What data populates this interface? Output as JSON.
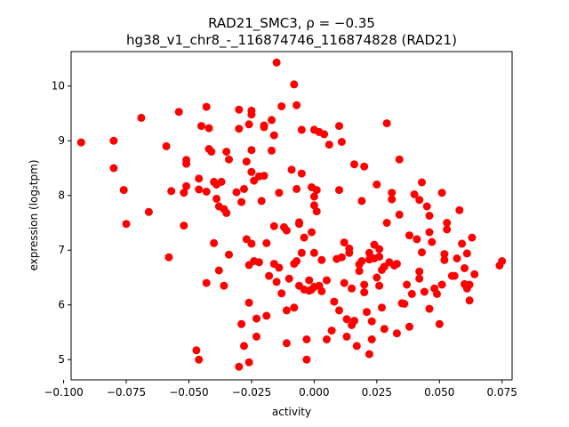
{
  "chart_data": {
    "type": "scatter",
    "title_line1": "RAD21_SMC3, ρ = −0.35",
    "title_line2": "hg38_v1_chr8_-_116874746_116874828 (RAD21)",
    "xlabel": "activity",
    "ylabel": "expression (log₂tpm)",
    "xlim": [
      -0.097,
      0.079
    ],
    "ylim": [
      4.63,
      10.63
    ],
    "xticks": [
      -0.1,
      -0.075,
      -0.05,
      -0.025,
      0.0,
      0.025,
      0.05,
      0.075
    ],
    "xtick_labels": [
      "−0.100",
      "−0.075",
      "−0.050",
      "−0.025",
      "0.000",
      "0.025",
      "0.050",
      "0.075"
    ],
    "yticks": [
      5,
      6,
      7,
      8,
      9,
      10
    ],
    "ytick_labels": [
      "5",
      "6",
      "7",
      "8",
      "9",
      "10"
    ],
    "grid": false,
    "marker_color": "#ff0000",
    "points": [
      [
        -0.093,
        8.97
      ],
      [
        -0.08,
        9.0
      ],
      [
        -0.08,
        8.5
      ],
      [
        -0.076,
        8.1
      ],
      [
        -0.075,
        7.48
      ],
      [
        -0.069,
        9.42
      ],
      [
        -0.066,
        7.7
      ],
      [
        -0.059,
        8.9
      ],
      [
        -0.058,
        6.87
      ],
      [
        -0.057,
        8.08
      ],
      [
        -0.054,
        9.53
      ],
      [
        -0.052,
        7.45
      ],
      [
        -0.052,
        8.05
      ],
      [
        -0.051,
        8.58
      ],
      [
        -0.051,
        8.65
      ],
      [
        -0.051,
        8.17
      ],
      [
        -0.047,
        5.17
      ],
      [
        -0.046,
        8.11
      ],
      [
        -0.046,
        5.0
      ],
      [
        -0.046,
        8.31
      ],
      [
        -0.045,
        9.27
      ],
      [
        -0.043,
        9.62
      ],
      [
        -0.043,
        8.07
      ],
      [
        -0.043,
        6.4
      ],
      [
        -0.042,
        9.23
      ],
      [
        -0.042,
        8.85
      ],
      [
        -0.041,
        8.8
      ],
      [
        -0.04,
        7.13
      ],
      [
        -0.04,
        8.25
      ],
      [
        -0.039,
        8.2
      ],
      [
        -0.039,
        7.94
      ],
      [
        -0.038,
        7.8
      ],
      [
        -0.038,
        6.63
      ],
      [
        -0.037,
        8.25
      ],
      [
        -0.036,
        6.35
      ],
      [
        -0.036,
        7.75
      ],
      [
        -0.035,
        8.8
      ],
      [
        -0.035,
        7.68
      ],
      [
        -0.034,
        8.66
      ],
      [
        -0.034,
        6.92
      ],
      [
        -0.031,
        8.06
      ],
      [
        -0.03,
        4.87
      ],
      [
        -0.03,
        9.57
      ],
      [
        -0.03,
        9.22
      ],
      [
        -0.029,
        7.88
      ],
      [
        -0.029,
        5.65
      ],
      [
        -0.028,
        8.12
      ],
      [
        -0.028,
        5.25
      ],
      [
        -0.027,
        7.2
      ],
      [
        -0.027,
        8.62
      ],
      [
        -0.026,
        9.3
      ],
      [
        -0.026,
        4.95
      ],
      [
        -0.026,
        6.73
      ],
      [
        -0.026,
        6.04
      ],
      [
        -0.025,
        8.83
      ],
      [
        -0.025,
        7.12
      ],
      [
        -0.025,
        8.43
      ],
      [
        -0.025,
        9.55
      ],
      [
        -0.025,
        9.48
      ],
      [
        -0.024,
        8.27
      ],
      [
        -0.024,
        6.8
      ],
      [
        -0.023,
        5.42
      ],
      [
        -0.023,
        5.75
      ],
      [
        -0.022,
        8.35
      ],
      [
        -0.022,
        6.78
      ],
      [
        -0.021,
        7.9
      ],
      [
        -0.02,
        9.25
      ],
      [
        -0.02,
        9.28
      ],
      [
        -0.02,
        8.36
      ],
      [
        -0.019,
        5.8
      ],
      [
        -0.019,
        7.13
      ],
      [
        -0.018,
        6.53
      ],
      [
        -0.017,
        8.82
      ],
      [
        -0.017,
        9.38
      ],
      [
        -0.016,
        6.75
      ],
      [
        -0.016,
        9.1
      ],
      [
        -0.016,
        7.44
      ],
      [
        -0.015,
        10.43
      ],
      [
        -0.015,
        6.42
      ],
      [
        -0.014,
        8.05
      ],
      [
        -0.014,
        6.68
      ],
      [
        -0.013,
        9.63
      ],
      [
        -0.013,
        6.21
      ],
      [
        -0.012,
        7.42
      ],
      [
        -0.011,
        5.3
      ],
      [
        -0.011,
        7.36
      ],
      [
        -0.011,
        5.9
      ],
      [
        -0.01,
        6.48
      ],
      [
        -0.009,
        8.47
      ],
      [
        -0.008,
        10.03
      ],
      [
        -0.008,
        5.95
      ],
      [
        -0.008,
        6.75
      ],
      [
        -0.007,
        8.12
      ],
      [
        -0.007,
        9.65
      ],
      [
        -0.007,
        6.8
      ],
      [
        -0.006,
        7.48
      ],
      [
        -0.006,
        7.51
      ],
      [
        -0.006,
        6.35
      ],
      [
        -0.005,
        8.4
      ],
      [
        -0.005,
        6.95
      ],
      [
        -0.005,
        9.2
      ],
      [
        -0.004,
        6.28
      ],
      [
        -0.004,
        7.23
      ],
      [
        -0.003,
        5.0
      ],
      [
        -0.003,
        5.37
      ],
      [
        -0.002,
        6.26
      ],
      [
        -0.002,
        6.45
      ],
      [
        -0.001,
        8.15
      ],
      [
        -0.001,
        6.28
      ],
      [
        -0.001,
        7.33
      ],
      [
        0.0,
        7.82
      ],
      [
        0.0,
        9.2
      ],
      [
        0.0,
        6.33
      ],
      [
        0.0,
        7.98
      ],
      [
        0.0,
        6.95
      ],
      [
        0.001,
        8.1
      ],
      [
        0.001,
        7.71
      ],
      [
        0.002,
        6.35
      ],
      [
        0.002,
        9.16
      ],
      [
        0.003,
        6.25
      ],
      [
        0.003,
        6.82
      ],
      [
        0.004,
        9.12
      ],
      [
        0.005,
        5.37
      ],
      [
        0.005,
        6.45
      ],
      [
        0.006,
        8.93
      ],
      [
        0.007,
        5.53
      ],
      [
        0.008,
        6.06
      ],
      [
        0.009,
        6.84
      ],
      [
        0.01,
        9.27
      ],
      [
        0.01,
        8.1
      ],
      [
        0.01,
        5.9
      ],
      [
        0.011,
        8.98
      ],
      [
        0.011,
        6.87
      ],
      [
        0.012,
        6.4
      ],
      [
        0.012,
        7.14
      ],
      [
        0.013,
        5.74
      ],
      [
        0.013,
        5.42
      ],
      [
        0.014,
        7.03
      ],
      [
        0.014,
        6.95
      ],
      [
        0.015,
        6.3
      ],
      [
        0.015,
        5.63
      ],
      [
        0.016,
        8.57
      ],
      [
        0.016,
        5.71
      ],
      [
        0.017,
        5.25
      ],
      [
        0.018,
        6.74
      ],
      [
        0.018,
        6.62
      ],
      [
        0.019,
        7.9
      ],
      [
        0.019,
        6.8
      ],
      [
        0.02,
        8.53
      ],
      [
        0.02,
        6.37
      ],
      [
        0.02,
        6.23
      ],
      [
        0.021,
        5.87
      ],
      [
        0.022,
        5.1
      ],
      [
        0.022,
        6.83
      ],
      [
        0.022,
        6.95
      ],
      [
        0.023,
        5.7
      ],
      [
        0.023,
        5.37
      ],
      [
        0.024,
        6.85
      ],
      [
        0.024,
        7.1
      ],
      [
        0.025,
        8.2
      ],
      [
        0.025,
        6.5
      ],
      [
        0.026,
        6.35
      ],
      [
        0.026,
        7.02
      ],
      [
        0.026,
        6.88
      ],
      [
        0.027,
        5.95
      ],
      [
        0.027,
        6.64
      ],
      [
        0.028,
        5.56
      ],
      [
        0.028,
        6.7
      ],
      [
        0.029,
        7.5
      ],
      [
        0.029,
        9.32
      ],
      [
        0.03,
        6.78
      ],
      [
        0.031,
        8.05
      ],
      [
        0.031,
        7.93
      ],
      [
        0.032,
        6.72
      ],
      [
        0.033,
        5.48
      ],
      [
        0.033,
        6.75
      ],
      [
        0.034,
        8.66
      ],
      [
        0.034,
        7.65
      ],
      [
        0.035,
        6.03
      ],
      [
        0.036,
        6.02
      ],
      [
        0.037,
        6.37
      ],
      [
        0.038,
        7.27
      ],
      [
        0.038,
        5.6
      ],
      [
        0.039,
        6.2
      ],
      [
        0.04,
        8.02
      ],
      [
        0.041,
        7.2
      ],
      [
        0.042,
        6.48
      ],
      [
        0.042,
        6.61
      ],
      [
        0.042,
        7.92
      ],
      [
        0.043,
        8.24
      ],
      [
        0.043,
        6.96
      ],
      [
        0.044,
        6.24
      ],
      [
        0.045,
        7.8
      ],
      [
        0.046,
        5.93
      ],
      [
        0.046,
        7.33
      ],
      [
        0.046,
        7.63
      ],
      [
        0.047,
        7.15
      ],
      [
        0.048,
        6.3
      ],
      [
        0.049,
        6.2
      ],
      [
        0.05,
        5.65
      ],
      [
        0.051,
        8.05
      ],
      [
        0.051,
        6.37
      ],
      [
        0.052,
        6.93
      ],
      [
        0.052,
        6.82
      ],
      [
        0.053,
        7.5
      ],
      [
        0.053,
        7.38
      ],
      [
        0.055,
        6.53
      ],
      [
        0.056,
        6.53
      ],
      [
        0.057,
        6.85
      ],
      [
        0.058,
        7.73
      ],
      [
        0.059,
        7.12
      ],
      [
        0.06,
        6.67
      ],
      [
        0.06,
        6.38
      ],
      [
        0.061,
        6.94
      ],
      [
        0.061,
        6.3
      ],
      [
        0.062,
        6.08
      ],
      [
        0.062,
        6.37
      ],
      [
        0.063,
        7.23
      ],
      [
        0.064,
        6.56
      ],
      [
        0.074,
        6.72
      ],
      [
        0.075,
        6.8
      ]
    ]
  }
}
